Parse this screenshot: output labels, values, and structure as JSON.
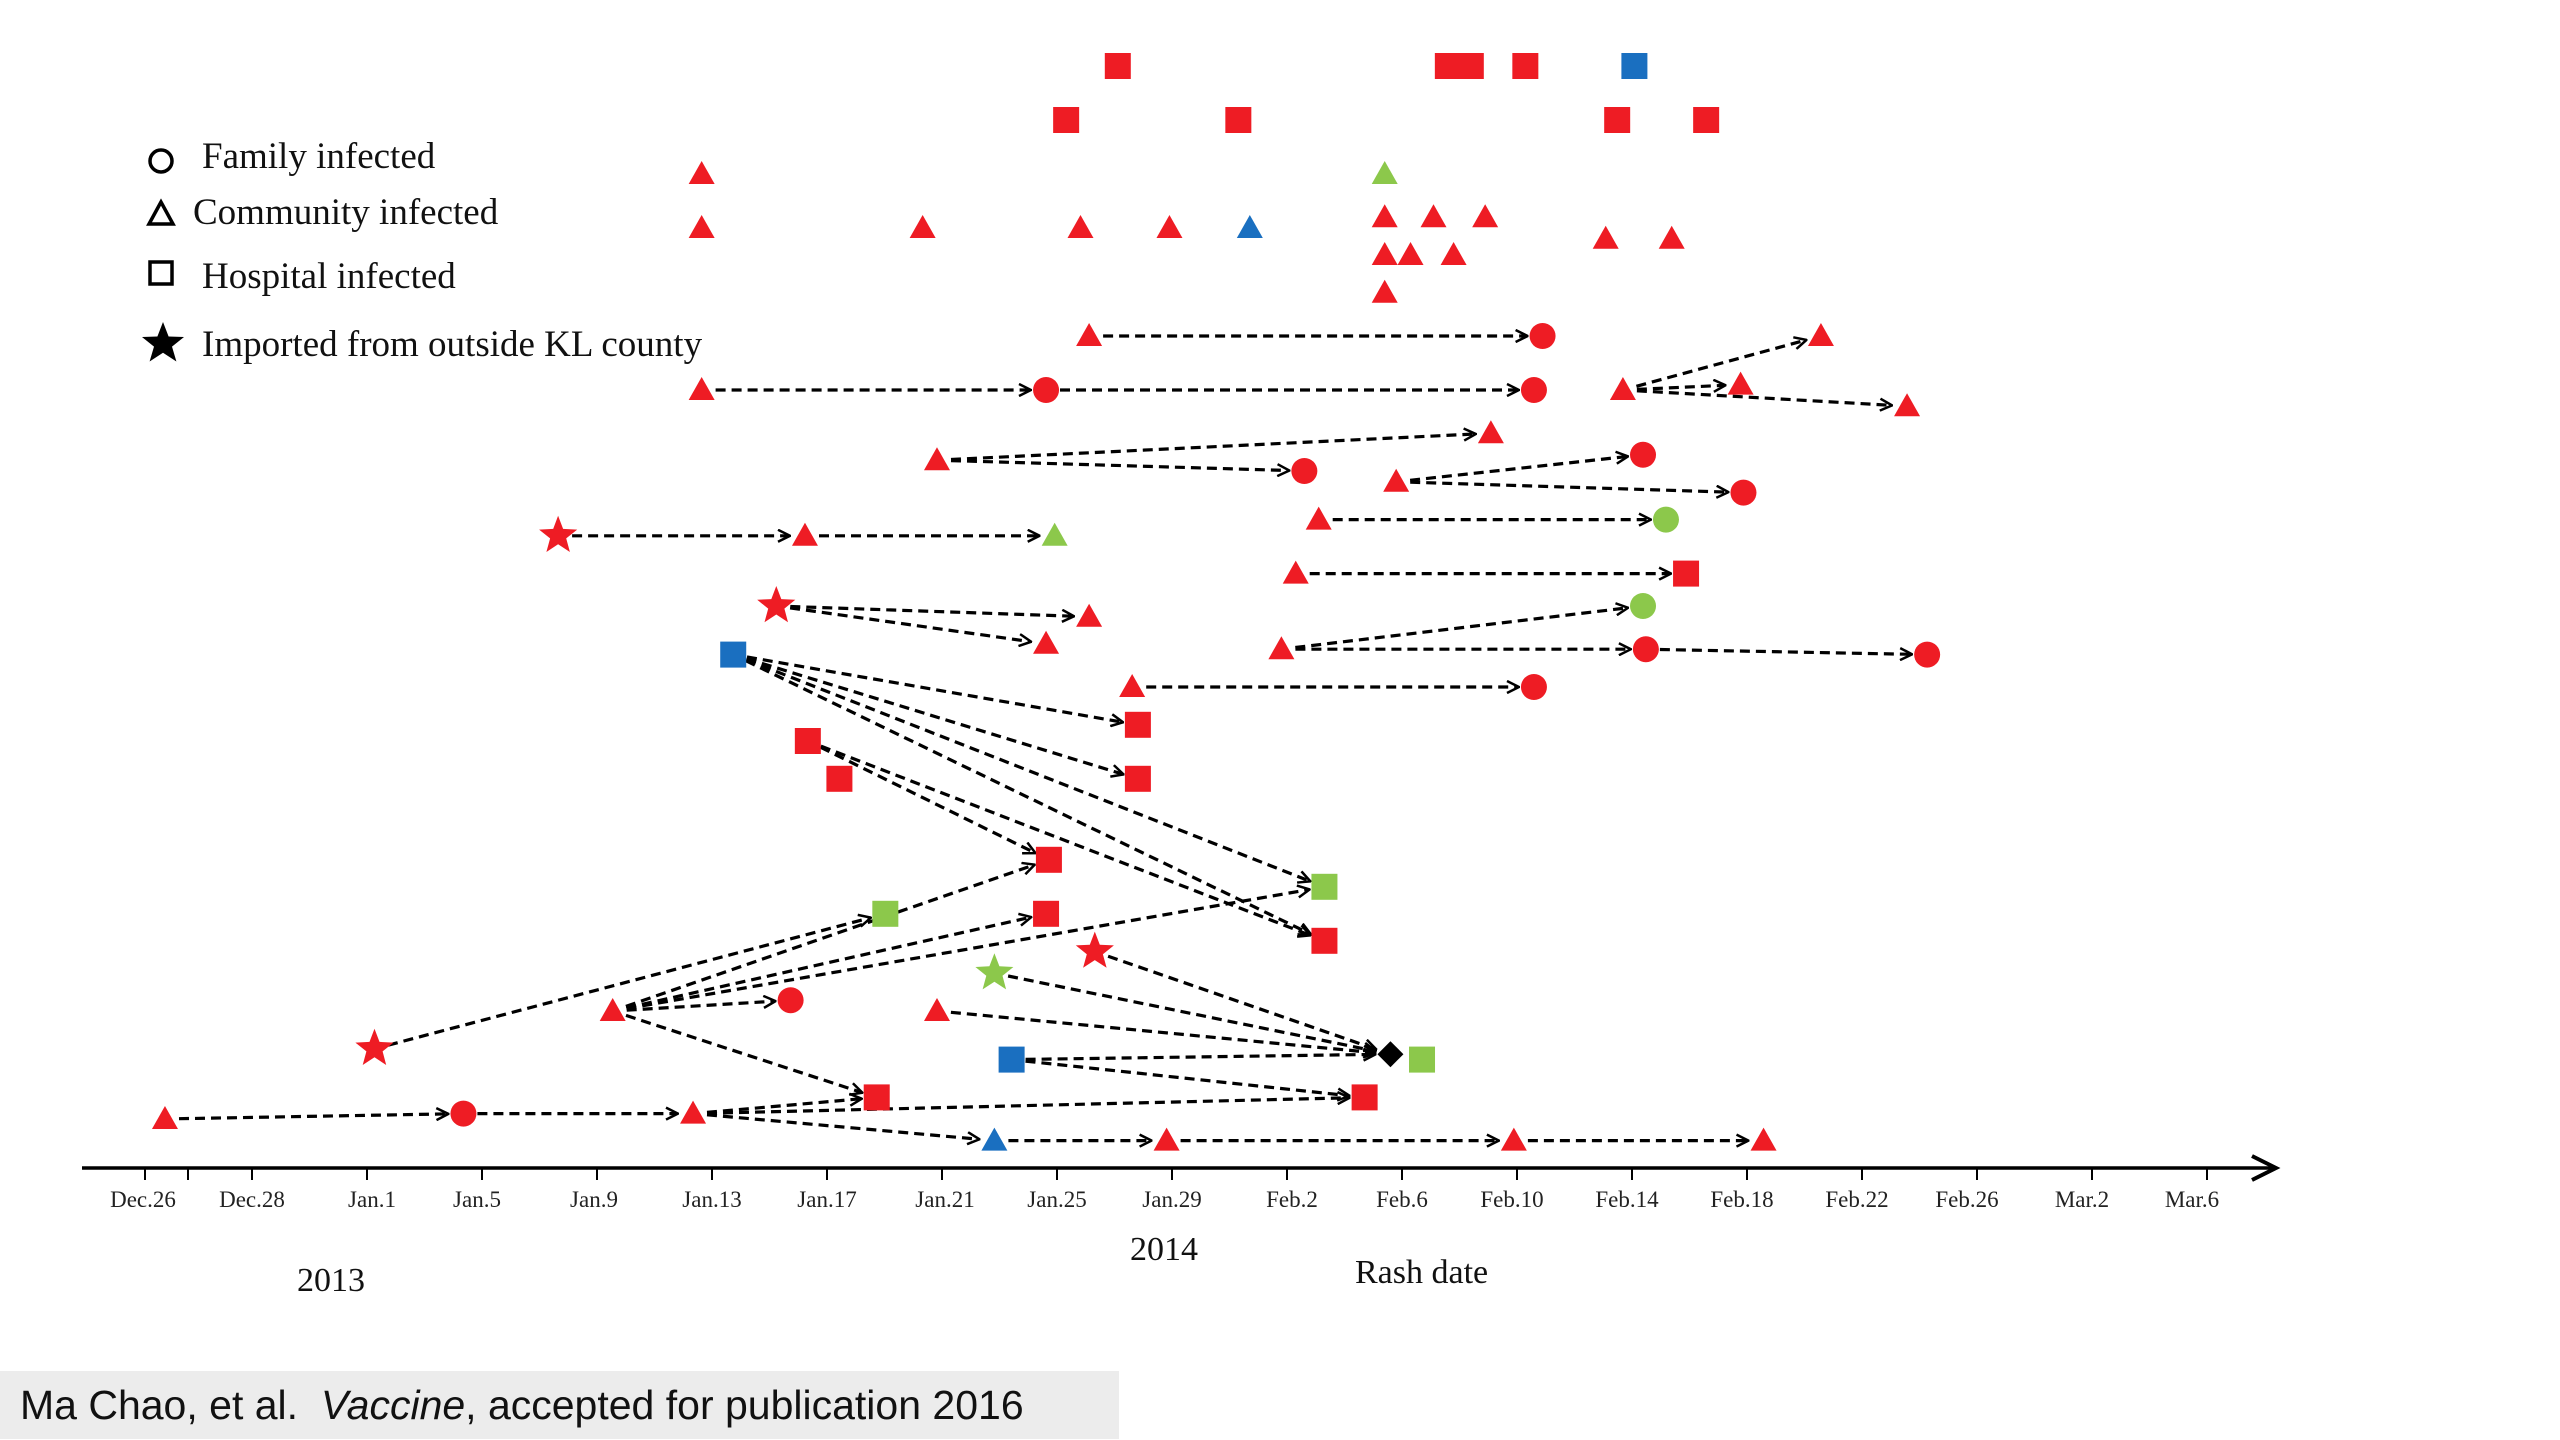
{
  "chart_data": {
    "type": "scatter",
    "title": "",
    "xlabel": "Rash date",
    "ylabel": "",
    "x_ticks": [
      "Dec.26",
      "Dec.28",
      "Jan.1",
      "Jan.5",
      "Jan.9",
      "Jan.13",
      "Jan.17",
      "Jan.21",
      "Jan.25",
      "Jan.29",
      "Feb.2",
      "Feb.6",
      "Feb.10",
      "Feb.14",
      "Feb.18",
      "Feb.22",
      "Feb.26",
      "Mar.2",
      "Mar.6"
    ],
    "year_labels": [
      "2013",
      "2014"
    ],
    "legend": [
      {
        "shape": "circle",
        "label": "Family  infected"
      },
      {
        "shape": "triangle",
        "label": "Community  infected"
      },
      {
        "shape": "square",
        "label": "Hospital  infected"
      },
      {
        "shape": "star",
        "label": "Imported  from  outside  KL  county"
      }
    ],
    "colors": {
      "red": "#ee1c24",
      "blue": "#1a6fc0",
      "green": "#8cc84b",
      "black": "#000000",
      "axis": "#000000"
    },
    "cases": [
      {
        "id": "s1",
        "shape": "square",
        "color": "red",
        "day": 34,
        "row": 0
      },
      {
        "id": "s2",
        "shape": "square",
        "color": "red",
        "day": 45.5,
        "row": 0
      },
      {
        "id": "s3",
        "shape": "square",
        "color": "red",
        "day": 46.3,
        "row": 0
      },
      {
        "id": "s4",
        "shape": "square",
        "color": "red",
        "day": 48.2,
        "row": 0
      },
      {
        "id": "s5",
        "shape": "square",
        "color": "blue",
        "day": 52,
        "row": 0
      },
      {
        "id": "s6",
        "shape": "square",
        "color": "red",
        "day": 32.2,
        "row": 1
      },
      {
        "id": "s7",
        "shape": "square",
        "color": "red",
        "day": 38.2,
        "row": 1
      },
      {
        "id": "s8",
        "shape": "square",
        "color": "red",
        "day": 51.4,
        "row": 1
      },
      {
        "id": "s9",
        "shape": "square",
        "color": "red",
        "day": 54.5,
        "row": 1
      },
      {
        "id": "t1",
        "shape": "triangle",
        "color": "red",
        "day": 19.5,
        "row": 2
      },
      {
        "id": "t2",
        "shape": "triangle",
        "color": "green",
        "day": 43.3,
        "row": 2
      },
      {
        "id": "t3",
        "shape": "triangle",
        "color": "red",
        "day": 19.5,
        "row": 3
      },
      {
        "id": "t4",
        "shape": "triangle",
        "color": "red",
        "day": 27.2,
        "row": 3
      },
      {
        "id": "t5",
        "shape": "triangle",
        "color": "red",
        "day": 32.7,
        "row": 3
      },
      {
        "id": "t6",
        "shape": "triangle",
        "color": "red",
        "day": 35.8,
        "row": 3
      },
      {
        "id": "t7",
        "shape": "triangle",
        "color": "blue",
        "day": 38.6,
        "row": 3
      },
      {
        "id": "t8",
        "shape": "triangle",
        "color": "red",
        "day": 43.3,
        "row": 2.8
      },
      {
        "id": "t9",
        "shape": "triangle",
        "color": "red",
        "day": 45,
        "row": 2.8
      },
      {
        "id": "t10",
        "shape": "triangle",
        "color": "red",
        "day": 46.8,
        "row": 2.8
      },
      {
        "id": "t11",
        "shape": "triangle",
        "color": "red",
        "day": 51,
        "row": 3.2
      },
      {
        "id": "t12",
        "shape": "triangle",
        "color": "red",
        "day": 53.3,
        "row": 3.2
      },
      {
        "id": "t13",
        "shape": "triangle",
        "color": "red",
        "day": 43.3,
        "row": 3.5
      },
      {
        "id": "t14",
        "shape": "triangle",
        "color": "red",
        "day": 44.2,
        "row": 3.5
      },
      {
        "id": "t15",
        "shape": "triangle",
        "color": "red",
        "day": 45.7,
        "row": 3.5
      },
      {
        "id": "t16",
        "shape": "triangle",
        "color": "red",
        "day": 43.3,
        "row": 4.2
      },
      {
        "id": "a1",
        "shape": "triangle",
        "color": "red",
        "day": 33,
        "row": 5
      },
      {
        "id": "a2",
        "shape": "circle",
        "color": "red",
        "day": 48.8,
        "row": 5
      },
      {
        "id": "b1",
        "shape": "triangle",
        "color": "red",
        "day": 19.5,
        "row": 6
      },
      {
        "id": "b2",
        "shape": "circle",
        "color": "red",
        "day": 31.5,
        "row": 6
      },
      {
        "id": "b3",
        "shape": "circle",
        "color": "red",
        "day": 48.5,
        "row": 6
      },
      {
        "id": "b4",
        "shape": "triangle",
        "color": "red",
        "day": 51.6,
        "row": 6
      },
      {
        "id": "b5",
        "shape": "triangle",
        "color": "red",
        "day": 58.5,
        "row": 5
      },
      {
        "id": "b6",
        "shape": "triangle",
        "color": "red",
        "day": 55.7,
        "row": 5.9
      },
      {
        "id": "b7",
        "shape": "triangle",
        "color": "red",
        "day": 61.5,
        "row": 6.3
      },
      {
        "id": "c1",
        "shape": "triangle",
        "color": "red",
        "day": 27.7,
        "row": 7.3
      },
      {
        "id": "c2",
        "shape": "triangle",
        "color": "red",
        "day": 47,
        "row": 6.8
      },
      {
        "id": "c3",
        "shape": "circle",
        "color": "red",
        "day": 40.5,
        "row": 7.5
      },
      {
        "id": "c4",
        "shape": "triangle",
        "color": "red",
        "day": 43.7,
        "row": 7.7
      },
      {
        "id": "c5",
        "shape": "circle",
        "color": "red",
        "day": 52.3,
        "row": 7.2
      },
      {
        "id": "c6",
        "shape": "circle",
        "color": "red",
        "day": 55.8,
        "row": 7.9
      },
      {
        "id": "d1",
        "shape": "star",
        "color": "red",
        "day": 14.5,
        "row": 8.7
      },
      {
        "id": "d2",
        "shape": "triangle",
        "color": "red",
        "day": 23.1,
        "row": 8.7
      },
      {
        "id": "d3",
        "shape": "triangle",
        "color": "green",
        "day": 31.8,
        "row": 8.7
      },
      {
        "id": "d4",
        "shape": "triangle",
        "color": "red",
        "day": 41,
        "row": 8.4
      },
      {
        "id": "d5",
        "shape": "circle",
        "color": "green",
        "day": 53.1,
        "row": 8.4
      },
      {
        "id": "e1",
        "shape": "triangle",
        "color": "red",
        "day": 40.2,
        "row": 9.4
      },
      {
        "id": "e2",
        "shape": "square",
        "color": "red",
        "day": 53.8,
        "row": 9.4
      },
      {
        "id": "f1",
        "shape": "star",
        "color": "red",
        "day": 22.1,
        "row": 10
      },
      {
        "id": "f2",
        "shape": "triangle",
        "color": "red",
        "day": 33,
        "row": 10.2
      },
      {
        "id": "f3",
        "shape": "triangle",
        "color": "red",
        "day": 31.5,
        "row": 10.7
      },
      {
        "id": "f4",
        "shape": "triangle",
        "color": "red",
        "day": 39.7,
        "row": 10.8
      },
      {
        "id": "f5",
        "shape": "circle",
        "color": "green",
        "day": 52.3,
        "row": 10
      },
      {
        "id": "f6",
        "shape": "circle",
        "color": "red",
        "day": 52.4,
        "row": 10.8
      },
      {
        "id": "f7",
        "shape": "circle",
        "color": "red",
        "day": 62.2,
        "row": 10.9
      },
      {
        "id": "g1",
        "shape": "square",
        "color": "blue",
        "day": 20.6,
        "row": 10.9
      },
      {
        "id": "g2",
        "shape": "triangle",
        "color": "red",
        "day": 34.5,
        "row": 11.5
      },
      {
        "id": "g3",
        "shape": "circle",
        "color": "red",
        "day": 48.5,
        "row": 11.5
      },
      {
        "id": "g4",
        "shape": "square",
        "color": "red",
        "day": 34.7,
        "row": 12.2
      },
      {
        "id": "g5",
        "shape": "square",
        "color": "red",
        "day": 34.7,
        "row": 13.2
      },
      {
        "id": "h1",
        "shape": "square",
        "color": "red",
        "day": 23.2,
        "row": 12.5
      },
      {
        "id": "h2",
        "shape": "square",
        "color": "red",
        "day": 24.3,
        "row": 13.2
      },
      {
        "id": "h3",
        "shape": "square",
        "color": "red",
        "day": 31.6,
        "row": 14.7
      },
      {
        "id": "h4",
        "shape": "square",
        "color": "green",
        "day": 41.2,
        "row": 15.2
      },
      {
        "id": "h5",
        "shape": "square",
        "color": "red",
        "day": 41.2,
        "row": 16.2
      },
      {
        "id": "h6",
        "shape": "square",
        "color": "red",
        "day": 31.5,
        "row": 15.7
      },
      {
        "id": "i1",
        "shape": "star",
        "color": "red",
        "day": 8.1,
        "row": 18.2
      },
      {
        "id": "i2",
        "shape": "square",
        "color": "green",
        "day": 25.9,
        "row": 15.7
      },
      {
        "id": "j1",
        "shape": "triangle",
        "color": "red",
        "day": 16.4,
        "row": 17.5
      },
      {
        "id": "j2",
        "shape": "circle",
        "color": "red",
        "day": 22.6,
        "row": 17.3
      },
      {
        "id": "k1",
        "shape": "star",
        "color": "green",
        "day": 29.7,
        "row": 16.8
      },
      {
        "id": "k2",
        "shape": "star",
        "color": "red",
        "day": 33.2,
        "row": 16.4
      },
      {
        "id": "k3",
        "shape": "triangle",
        "color": "red",
        "day": 27.7,
        "row": 17.5
      },
      {
        "id": "k4",
        "shape": "square",
        "color": "blue",
        "day": 30.3,
        "row": 18.4
      },
      {
        "id": "k5",
        "shape": "diamond",
        "color": "black",
        "day": 43.5,
        "row": 18.3
      },
      {
        "id": "k6",
        "shape": "square",
        "color": "green",
        "day": 44.6,
        "row": 18.4
      },
      {
        "id": "k7",
        "shape": "square",
        "color": "red",
        "day": 42.6,
        "row": 19.1
      },
      {
        "id": "m1",
        "shape": "triangle",
        "color": "red",
        "day": 0.8,
        "row": 19.5
      },
      {
        "id": "m2",
        "shape": "circle",
        "color": "red",
        "day": 11.2,
        "row": 19.4
      },
      {
        "id": "m3",
        "shape": "triangle",
        "color": "red",
        "day": 19.2,
        "row": 19.4
      },
      {
        "id": "m4",
        "shape": "square",
        "color": "red",
        "day": 25.6,
        "row": 19.1
      },
      {
        "id": "m5",
        "shape": "triangle",
        "color": "blue",
        "day": 29.7,
        "row": 19.9
      },
      {
        "id": "m6",
        "shape": "triangle",
        "color": "red",
        "day": 35.7,
        "row": 19.9
      },
      {
        "id": "m7",
        "shape": "triangle",
        "color": "red",
        "day": 47.8,
        "row": 19.9
      },
      {
        "id": "m8",
        "shape": "triangle",
        "color": "red",
        "day": 56.5,
        "row": 19.9
      }
    ],
    "transmissions": [
      [
        "a1",
        "a2"
      ],
      [
        "b1",
        "b2"
      ],
      [
        "b2",
        "b3"
      ],
      [
        "b4",
        "b5"
      ],
      [
        "b4",
        "b6"
      ],
      [
        "b4",
        "b7"
      ],
      [
        "c1",
        "c2"
      ],
      [
        "c1",
        "c3"
      ],
      [
        "c4",
        "c5"
      ],
      [
        "c4",
        "c6"
      ],
      [
        "d1",
        "d2"
      ],
      [
        "d2",
        "d3"
      ],
      [
        "d4",
        "d5"
      ],
      [
        "e1",
        "e2"
      ],
      [
        "f1",
        "f2"
      ],
      [
        "f1",
        "f3"
      ],
      [
        "f4",
        "f5"
      ],
      [
        "f4",
        "f6"
      ],
      [
        "f6",
        "f7"
      ],
      [
        "g2",
        "g3"
      ],
      [
        "g1",
        "g4"
      ],
      [
        "g1",
        "g5"
      ],
      [
        "g1",
        "h4"
      ],
      [
        "g1",
        "h5"
      ],
      [
        "h1",
        "h3"
      ],
      [
        "h1",
        "h5"
      ],
      [
        "i1",
        "i2"
      ],
      [
        "j1",
        "j2"
      ],
      [
        "j1",
        "h3"
      ],
      [
        "j1",
        "h6"
      ],
      [
        "j1",
        "h4"
      ],
      [
        "j1",
        "m4"
      ],
      [
        "k1",
        "k5"
      ],
      [
        "k2",
        "k5"
      ],
      [
        "k3",
        "k5"
      ],
      [
        "k4",
        "k5"
      ],
      [
        "k4",
        "k7"
      ],
      [
        "m1",
        "m2"
      ],
      [
        "m2",
        "m3"
      ],
      [
        "m3",
        "m4"
      ],
      [
        "m3",
        "m5"
      ],
      [
        "m3",
        "k7"
      ],
      [
        "m5",
        "m6"
      ],
      [
        "m6",
        "m7"
      ],
      [
        "m7",
        "m8"
      ]
    ]
  },
  "citation": {
    "authors": "Ma Chao, et al.",
    "journal": "Vaccine",
    "rest": ", accepted for publication 2016"
  }
}
